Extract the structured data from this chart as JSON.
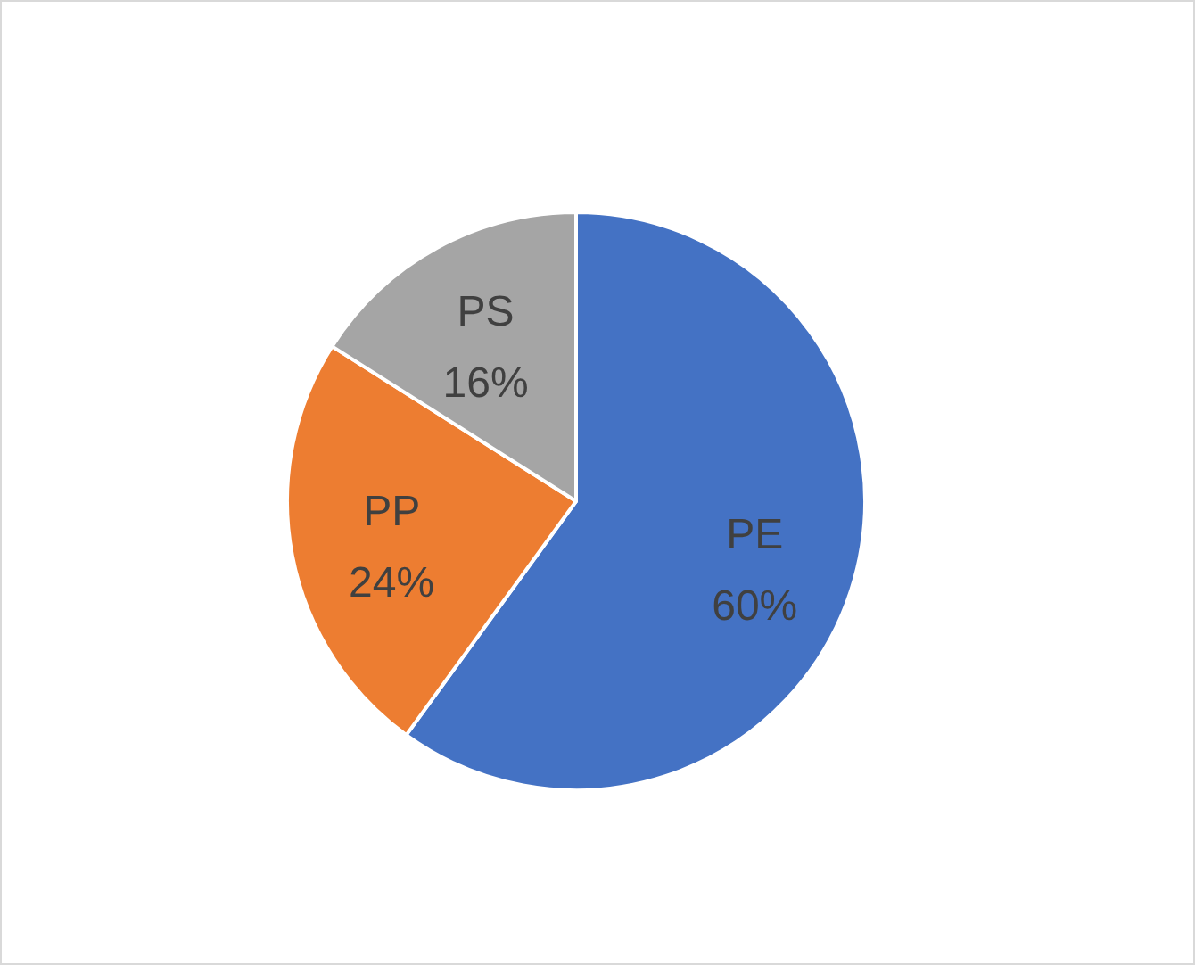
{
  "chart_data": {
    "type": "pie",
    "categories": [
      "PE",
      "PP",
      "PS"
    ],
    "values": [
      60,
      24,
      16
    ],
    "colors": [
      "#4472c4",
      "#ed7d31",
      "#a5a5a5"
    ],
    "value_labels": [
      "60%",
      "24%",
      "16%"
    ]
  }
}
